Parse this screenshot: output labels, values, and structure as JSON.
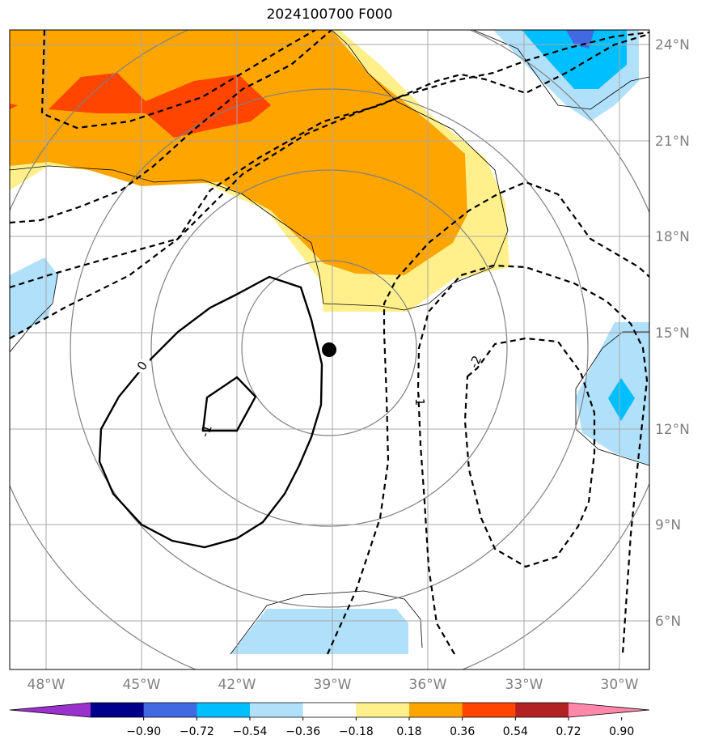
{
  "title": "2024100700 F000",
  "lat_ticks": [
    "24°N",
    "21°N",
    "18°N",
    "15°N",
    "12°N",
    "9°N",
    "6°N"
  ],
  "lon_ticks": [
    "48°W",
    "45°W",
    "42°W",
    "39°W",
    "36°W",
    "33°W",
    "30°W"
  ],
  "contour_labels": {
    "zero": "0",
    "minus_one_solid": "-1",
    "minus_one_dashed": "-1",
    "minus_two": "-2"
  },
  "colorbar": {
    "ticks": [
      "−0.90",
      "−0.72",
      "−0.54",
      "−0.36",
      "−0.18",
      "0.18",
      "0.36",
      "0.54",
      "0.72",
      "0.90"
    ],
    "colors": [
      "#9932cc",
      "#00008b",
      "#4169e1",
      "#00bfff",
      "#b0e0fa",
      "#ffffff",
      "#fff08c",
      "#ffa500",
      "#ff4500",
      "#b22222",
      "#ff88aa"
    ]
  },
  "storm_center": {
    "lat": 14.5,
    "lon": -39.1
  }
}
